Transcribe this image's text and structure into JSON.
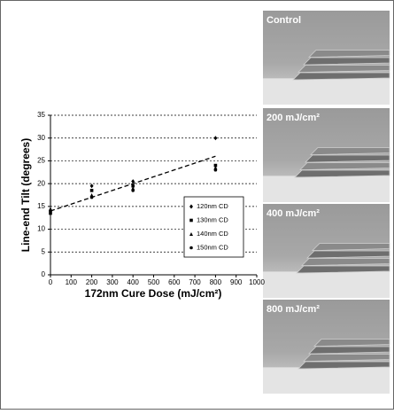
{
  "chart_data": {
    "type": "scatter",
    "x_label": "172nm Cure Dose (mJ/cm²)",
    "y_label": "Line-end Tilt (degrees)",
    "x": [
      0,
      200,
      400,
      800
    ],
    "series": [
      {
        "name": "120nm CD",
        "marker": "diamond",
        "color": "#000000",
        "values": [
          14,
          19.5,
          20.5,
          30
        ]
      },
      {
        "name": "130nm CD",
        "marker": "square",
        "color": "#000000",
        "values": [
          13.5,
          18.5,
          19.5,
          24
        ]
      },
      {
        "name": "140nm CD",
        "marker": "triangle",
        "color": "#000000",
        "values": [
          14.5,
          17.5,
          19,
          23.5
        ]
      },
      {
        "name": "150nm CD",
        "marker": "circle",
        "color": "#000000",
        "values": [
          14,
          17,
          18.5,
          23
        ]
      }
    ],
    "trendline": {
      "x": [
        0,
        800
      ],
      "y": [
        14,
        26
      ]
    },
    "xlim": [
      0,
      1000
    ],
    "xticks": [
      0,
      100,
      200,
      300,
      400,
      500,
      600,
      700,
      800,
      900,
      1000
    ],
    "ylim": [
      0,
      35
    ],
    "yticks": [
      0,
      5,
      10,
      15,
      20,
      25,
      30,
      35
    ],
    "grid": true
  },
  "panels": [
    "Control",
    "200 mJ/cm²",
    "400 mJ/cm²",
    "800 mJ/cm²"
  ]
}
